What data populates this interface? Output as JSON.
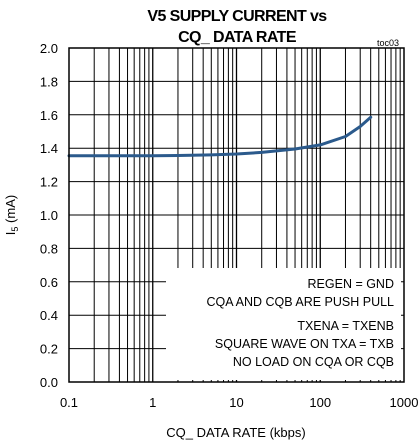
{
  "chart_data": {
    "type": "line",
    "title_line1": "V5 SUPPLY CURRENT vs",
    "title_line2": "CQ_ DATA RATE",
    "figure_id": "toc03",
    "xlabel": "CQ_ DATA RATE (kbps)",
    "ylabel_main": "I",
    "ylabel_sub": "5",
    "ylabel_unit": " (mA)",
    "x_scale": "log",
    "xlim": [
      0.1,
      1000
    ],
    "ylim": [
      0.0,
      2.0
    ],
    "x_ticks": [
      0.1,
      1,
      10,
      100,
      1000
    ],
    "x_tick_labels": [
      "0.1",
      "1",
      "10",
      "100",
      "1000"
    ],
    "y_ticks": [
      0.0,
      0.2,
      0.4,
      0.6,
      0.8,
      1.0,
      1.2,
      1.4,
      1.6,
      1.8,
      2.0
    ],
    "y_tick_labels": [
      "0.0",
      "0.2",
      "0.4",
      "0.6",
      "0.8",
      "1.0",
      "1.2",
      "1.4",
      "1.6",
      "1.8",
      "2.0"
    ],
    "grid": true,
    "series": [
      {
        "color": "#2b5a8c",
        "x": [
          0.1,
          0.3,
          1,
          2,
          5,
          10,
          20,
          50,
          100,
          200,
          300,
          400
        ],
        "y": [
          1.355,
          1.355,
          1.355,
          1.356,
          1.36,
          1.365,
          1.375,
          1.395,
          1.42,
          1.47,
          1.53,
          1.585
        ]
      }
    ],
    "annotations": [
      "REGEN = GND",
      "CQA AND CQB ARE PUSH PULL",
      "TXENA = TXENB",
      "SQUARE WAVE ON TXA = TXB",
      "NO LOAD ON CQA OR CQB"
    ]
  }
}
